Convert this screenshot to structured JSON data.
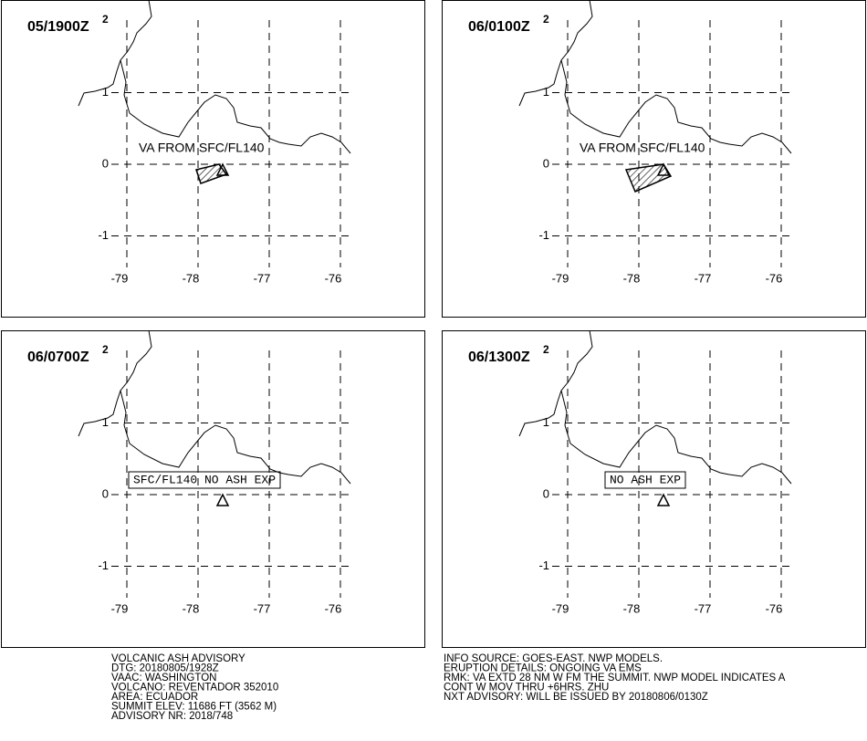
{
  "panels": [
    {
      "time": "05/1900Z",
      "superscript": "2",
      "annotation": {
        "text": "VA FROM SFC/FL140",
        "boxed": false
      }
    },
    {
      "time": "06/0100Z",
      "superscript": "2",
      "annotation": {
        "text": "VA FROM SFC/FL140",
        "boxed": false
      }
    },
    {
      "time": "06/0700Z",
      "superscript": "2",
      "annotation": {
        "text": "SFC/FL140 NO ASH EXP",
        "boxed": true
      }
    },
    {
      "time": "06/1300Z",
      "superscript": "2",
      "annotation": {
        "text": "NO ASH EXP",
        "boxed": true
      }
    }
  ],
  "axes": {
    "lon_ticks": [
      -79,
      -78,
      -77,
      -76
    ],
    "lat_ticks": [
      1,
      0,
      -1
    ]
  },
  "advisory": {
    "left": [
      "VOLCANIC ASH ADVISORY",
      "DTG: 20180805/1928Z",
      "VAAC: WASHINGTON",
      "VOLCANO: REVENTADOR 352010",
      "AREA: ECUADOR",
      "SUMMIT ELEV: 11686 FT (3562 M)",
      "ADVISORY NR: 2018/748"
    ],
    "right": [
      "INFO SOURCE: GOES-EAST. NWP MODELS.",
      "ERUPTION DETAILS: ONGOING VA EMS",
      "RMK: VA EXTD 28 NM W FM THE SUMMIT. NWP MODEL INDICATES A",
      "CONT W MOV THRU +6HRS.    ZHU",
      "NXT ADVISORY: WILL BE ISSUED BY 20180806/0130Z"
    ]
  }
}
